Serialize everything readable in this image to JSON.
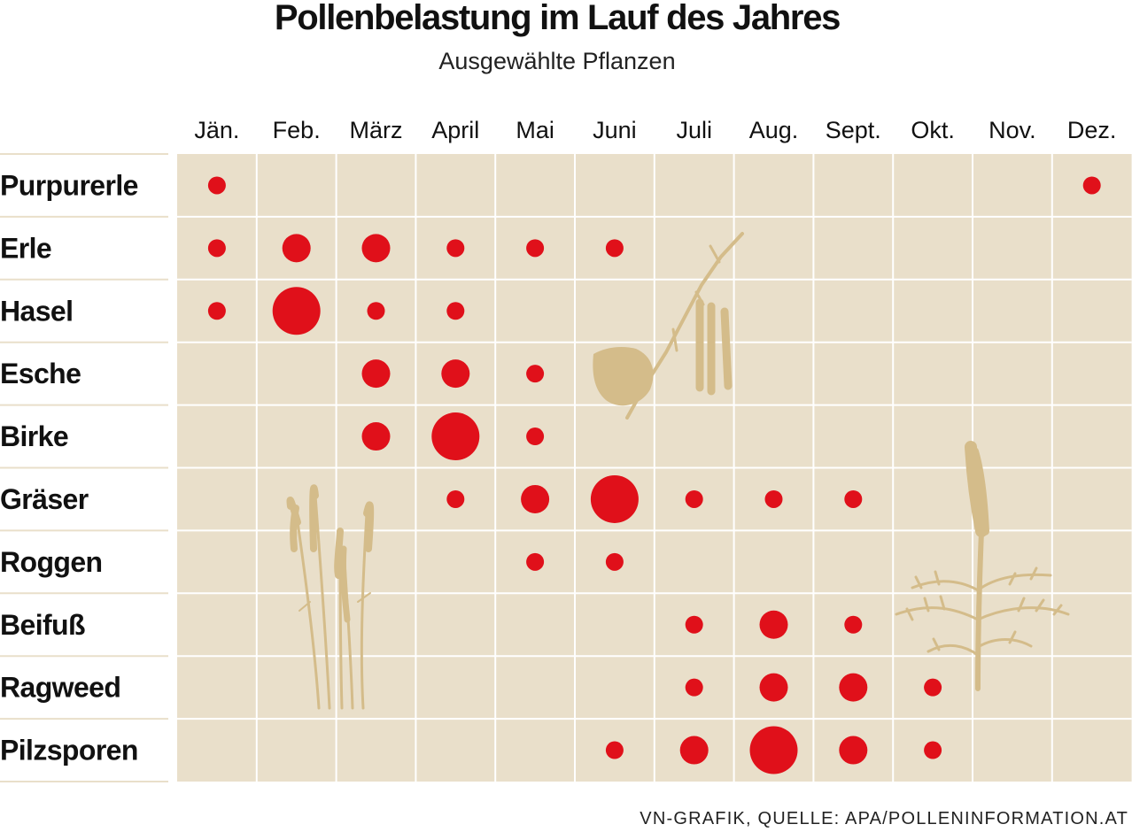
{
  "title": "Pollenbelastung im Lauf des Jahres",
  "subtitle": "Ausgewählte Pflanzen",
  "source": "VN-GRAFIK, QUELLE: APA/POLLENINFORMATION.AT",
  "colors": {
    "dot": "#e0101a",
    "cell": "#e9dfca",
    "grid": "#ffffff",
    "illustration": "#d4bc8a"
  },
  "illustrations": [
    "birch-branch-icon",
    "grass-icon",
    "mugwort-icon"
  ],
  "chart_data": {
    "type": "table",
    "title": "Pollenbelastung im Lauf des Jahres",
    "subtitle": "Ausgewählte Pflanzen",
    "months": [
      "Jän.",
      "Feb.",
      "März",
      "April",
      "Mai",
      "Juni",
      "Juli",
      "Aug.",
      "Sept.",
      "Okt.",
      "Nov.",
      "Dez."
    ],
    "intensity_scale": [
      0,
      1,
      2,
      3
    ],
    "series": [
      {
        "name": "Purpurerle",
        "values": [
          1,
          0,
          0,
          0,
          0,
          0,
          0,
          0,
          0,
          0,
          0,
          1
        ]
      },
      {
        "name": "Erle",
        "values": [
          1,
          2,
          2,
          1,
          1,
          1,
          0,
          0,
          0,
          0,
          0,
          0
        ]
      },
      {
        "name": "Hasel",
        "values": [
          1,
          3,
          1,
          1,
          0,
          0,
          0,
          0,
          0,
          0,
          0,
          0
        ]
      },
      {
        "name": "Esche",
        "values": [
          0,
          0,
          2,
          2,
          1,
          0,
          0,
          0,
          0,
          0,
          0,
          0
        ]
      },
      {
        "name": "Birke",
        "values": [
          0,
          0,
          2,
          3,
          1,
          0,
          0,
          0,
          0,
          0,
          0,
          0
        ]
      },
      {
        "name": "Gräser",
        "values": [
          0,
          0,
          0,
          1,
          2,
          3,
          1,
          1,
          1,
          0,
          0,
          0
        ]
      },
      {
        "name": "Roggen",
        "values": [
          0,
          0,
          0,
          0,
          1,
          1,
          0,
          0,
          0,
          0,
          0,
          0
        ]
      },
      {
        "name": "Beifuß",
        "values": [
          0,
          0,
          0,
          0,
          0,
          0,
          1,
          2,
          1,
          0,
          0,
          0
        ]
      },
      {
        "name": "Ragweed",
        "values": [
          0,
          0,
          0,
          0,
          0,
          0,
          1,
          2,
          2,
          1,
          0,
          0
        ]
      },
      {
        "name": "Pilzsporen",
        "values": [
          0,
          0,
          0,
          0,
          0,
          1,
          2,
          3,
          2,
          1,
          0,
          0
        ]
      }
    ]
  }
}
